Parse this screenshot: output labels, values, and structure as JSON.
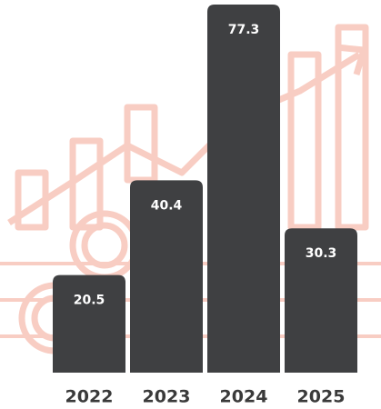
{
  "chart_data": {
    "type": "bar",
    "categories": [
      "2022",
      "2023",
      "2024",
      "2025"
    ],
    "values": [
      20.5,
      40.4,
      77.3,
      30.3
    ],
    "color": "#3f4042"
  }
}
